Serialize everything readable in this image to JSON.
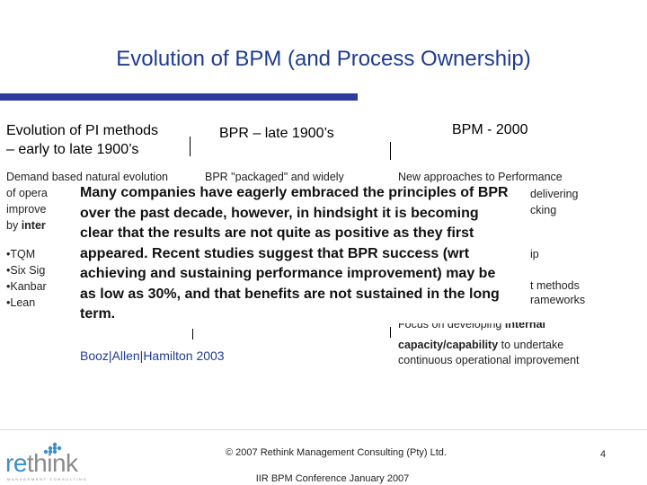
{
  "slide": {
    "title": "Evolution of BPM (and Process Ownership)",
    "columns": [
      {
        "heading_line1": "Evolution of PI methods",
        "heading_line2": "– early to late 1900’s"
      },
      {
        "heading": "BPR – late 1900’s"
      },
      {
        "heading": "BPM - 2000"
      }
    ],
    "col1": {
      "line1": "Demand based natural evolution",
      "line2": "of opera",
      "line3": "improve",
      "line4_prefix": "by ",
      "line4_bold": "inter",
      "bullets": [
        "•TQM",
        "•Six Sig",
        "•Kanbar",
        "•Lean"
      ]
    },
    "col2": {
      "line1": "BPR \"packaged\" and widely",
      "attribution": "Booz|Allen|Hamilton 2003"
    },
    "col3": {
      "line1": "New approaches to Performance",
      "frag1": "delivering",
      "frag2": "cking",
      "frag3": "ip",
      "frag4": "t methods",
      "frag5": "rameworks",
      "focus_line_prefix": "Focus on developing ",
      "focus_line_bold": "internal",
      "focus_line2_bold": "capacity/capability",
      "focus_line2_rest": " to undertake",
      "focus_line3": "continuous operational improvement"
    },
    "callout": "Many companies have eagerly embraced the principles of BPR over the past decade, however, in hindsight it is becoming clear that the results are not quite as positive as they first appeared. Recent studies suggest that BPR success (wrt achieving and sustaining performance improvement) may be as low as 30%, and that benefits are not sustained in the long term.",
    "footer": {
      "copyright": "© 2007 Rethink Management Consulting (Pty) Ltd.",
      "page_number": "4",
      "conference": "IIR BPM Conference January 2007"
    },
    "logo": {
      "part1": "re",
      "part2": "think",
      "tagline": "MANAGEMENT CONSULTING"
    },
    "colors": {
      "title": "#1f3b8f",
      "rule": "#2a3d9a",
      "logo_accent": "#3b8ec9"
    }
  }
}
